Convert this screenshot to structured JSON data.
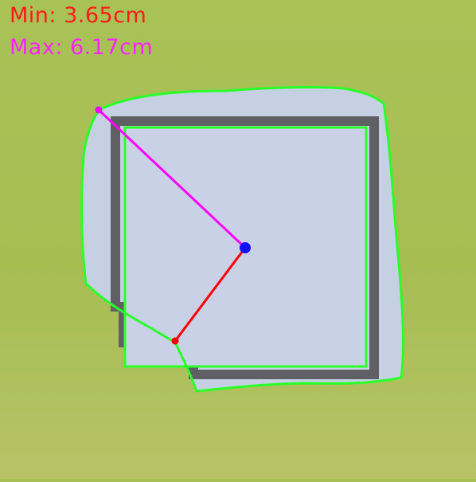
{
  "measurements": {
    "min_text": "Min: 3.65cm",
    "max_text": "Max: 6.17cm"
  },
  "colors": {
    "background_green": "#a8bf55",
    "paper": "#c8d1e6",
    "contour": "#28ff28",
    "min_line": "#ff0000",
    "max_line": "#ff00ff",
    "center_point": "#1111ff",
    "frame_border": "#5e6064"
  }
}
